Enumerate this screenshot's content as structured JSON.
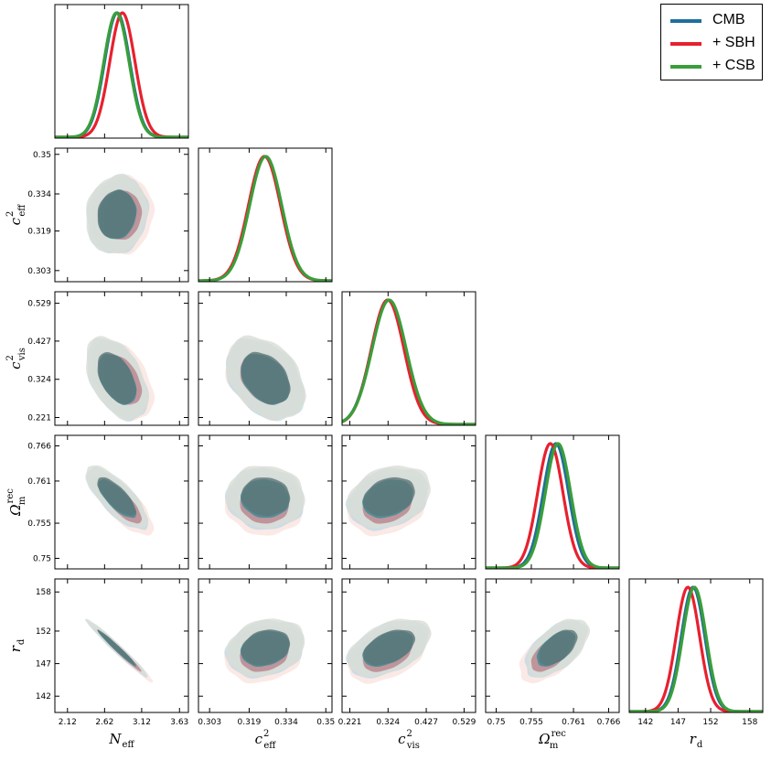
{
  "colors": {
    "cmb": "#1f6f9c",
    "sbh": "#e8202e",
    "csb": "#3a9e3a",
    "fill_cmb_inner": "#3c8c93",
    "fill_cmb_outer": "#a9cfe3",
    "fill_sbh_inner": "#b77b86",
    "fill_sbh_outer": "#f6d7cf",
    "fill_csb_inner": "#5e7577",
    "fill_csb_outer": "#d9ddd6"
  },
  "legend": [
    {
      "label": "CMB",
      "color_key": "cmb"
    },
    {
      "label": "+ SBH",
      "color_key": "sbh"
    },
    {
      "label": "+ CSB",
      "color_key": "csb"
    }
  ],
  "chart_data": {
    "type": "corner",
    "title": "",
    "parameters": [
      {
        "key": "neff",
        "name": "N",
        "sub": "eff",
        "range": [
          1.95,
          3.75
        ],
        "ticks": [
          "2.12",
          "2.62",
          "3.12",
          "3.63"
        ],
        "tickvals": [
          2.12,
          2.62,
          3.12,
          3.63
        ]
      },
      {
        "key": "ceff",
        "name": "c",
        "sub": "eff",
        "sup": "2",
        "range": [
          0.2985,
          0.3525
        ],
        "ticks": [
          "0.303",
          "0.319",
          "0.334",
          "0.35"
        ],
        "tickvals": [
          0.303,
          0.319,
          0.334,
          0.35
        ]
      },
      {
        "key": "cvis",
        "name": "c",
        "sub": "vis",
        "sup": "2",
        "range": [
          0.2,
          0.56
        ],
        "ticks": [
          "0.221",
          "0.324",
          "0.427",
          "0.529"
        ],
        "tickvals": [
          0.221,
          0.324,
          0.427,
          0.529
        ]
      },
      {
        "key": "om",
        "name": "Ω",
        "sub": "m",
        "sup": "rec",
        "range": [
          0.7485,
          0.7675
        ],
        "ticks": [
          "0.75",
          "0.755",
          "0.761",
          "0.766"
        ],
        "tickvals": [
          0.75,
          0.755,
          0.761,
          0.766
        ]
      },
      {
        "key": "rd",
        "name": "r",
        "sub": "d",
        "range": [
          139.5,
          160.0
        ],
        "ticks": [
          "142",
          "147",
          "152",
          "158"
        ],
        "tickvals": [
          142,
          147,
          152,
          158
        ]
      }
    ],
    "series": [
      {
        "name": "CMB",
        "color_key": "cmb",
        "mean": {
          "neff": 2.79,
          "ceff": 0.3255,
          "cvis": 0.324,
          "om": 0.7585,
          "rd": 149.3
        },
        "sigma": {
          "neff": 0.17,
          "ceff": 0.0065,
          "cvis": 0.045,
          "om": 0.0018,
          "rd": 1.8
        }
      },
      {
        "name": "+ SBH",
        "color_key": "sbh",
        "mean": {
          "neff": 2.86,
          "ceff": 0.3252,
          "cvis": 0.323,
          "om": 0.7577,
          "rd": 148.5
        },
        "sigma": {
          "neff": 0.17,
          "ceff": 0.0065,
          "cvis": 0.044,
          "om": 0.0018,
          "rd": 1.8
        }
      },
      {
        "name": "+ CSB",
        "color_key": "csb",
        "mean": {
          "neff": 2.78,
          "ceff": 0.3257,
          "cvis": 0.327,
          "om": 0.7588,
          "rd": 149.5
        },
        "sigma": {
          "neff": 0.17,
          "ceff": 0.0065,
          "cvis": 0.046,
          "om": 0.0018,
          "rd": 1.8
        }
      }
    ],
    "correlations": {
      "ceff-neff": 0.1,
      "cvis-neff": -0.45,
      "cvis-ceff": -0.35,
      "om-neff": -0.75,
      "om-ceff": -0.05,
      "om-cvis": 0.25,
      "rd-neff": -0.98,
      "rd-ceff": 0.2,
      "rd-cvis": 0.45,
      "rd-om": 0.55
    },
    "grid": false,
    "legend_position": "top-right"
  }
}
